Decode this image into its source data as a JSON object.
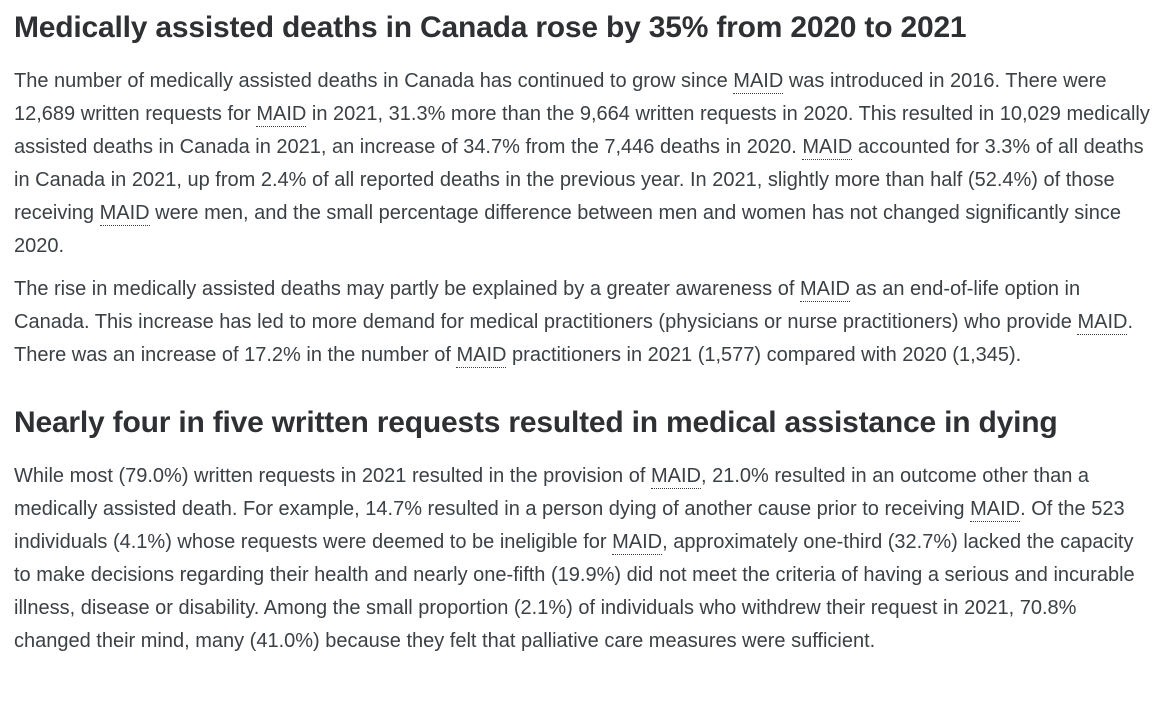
{
  "theme": {
    "background_color": "#ffffff",
    "heading_color": "#2f3033",
    "body_text_color": "#3b4045",
    "abbr_underline_style": "dotted"
  },
  "article": {
    "title": "Medically assisted deaths in Canada rose by 35% from 2020 to 2021",
    "section_heading": "Nearly four in five written requests resulted in medical assistance in dying",
    "abbreviation": "MAID",
    "paragraphs": [
      {
        "segments": [
          {
            "t": "The number of medically assisted deaths in Canada has continued to grow since "
          },
          {
            "t": "MAID",
            "abbr": true
          },
          {
            "t": " was introduced in 2016. There were 12,689 written requests for "
          },
          {
            "t": "MAID",
            "abbr": true
          },
          {
            "t": " in 2021, 31.3% more than the 9,664 written requests in 2020. This resulted in 10,029 medically assisted deaths in Canada in 2021, an increase of 34.7% from the 7,446 deaths in 2020. "
          },
          {
            "t": "MAID",
            "abbr": true
          },
          {
            "t": " accounted for 3.3% of all deaths in Canada in 2021, up from 2.4% of all reported deaths in the previous year. In 2021, slightly more than half (52.4%) of those receiving "
          },
          {
            "t": "MAID",
            "abbr": true
          },
          {
            "t": " were men, and the small percentage difference between men and women has not changed significantly since 2020."
          }
        ]
      },
      {
        "segments": [
          {
            "t": "The rise in medically assisted deaths may partly be explained by a greater awareness of "
          },
          {
            "t": "MAID",
            "abbr": true
          },
          {
            "t": " as an end-of-life option in Canada. This increase has led to more demand for medical practitioners (physicians or nurse practitioners) who provide "
          },
          {
            "t": "MAID",
            "abbr": true
          },
          {
            "t": ". There was an increase of 17.2% in the number of "
          },
          {
            "t": "MAID",
            "abbr": true
          },
          {
            "t": " practitioners in 2021 (1,577) compared with 2020 (1,345)."
          }
        ]
      },
      {
        "segments": [
          {
            "t": "While most (79.0%) written requests in 2021 resulted in the provision of "
          },
          {
            "t": "MAID",
            "abbr": true
          },
          {
            "t": ", 21.0% resulted in an outcome other than a medically assisted death. For example, 14.7% resulted in a person dying of another cause prior to receiving "
          },
          {
            "t": "MAID",
            "abbr": true
          },
          {
            "t": ". Of the 523 individuals (4.1%) whose requests were deemed to be ineligible for "
          },
          {
            "t": "MAID",
            "abbr": true
          },
          {
            "t": ", approximately one-third (32.7%) lacked the capacity to make decisions regarding their health and nearly one-fifth (19.9%) did not meet the criteria of having a serious and incurable illness, disease or disability. Among the small proportion (2.1%) of individuals who withdrew their request in 2021, 70.8% changed their mind, many (41.0%) because they felt that palliative care measures were sufficient."
          }
        ]
      }
    ]
  }
}
